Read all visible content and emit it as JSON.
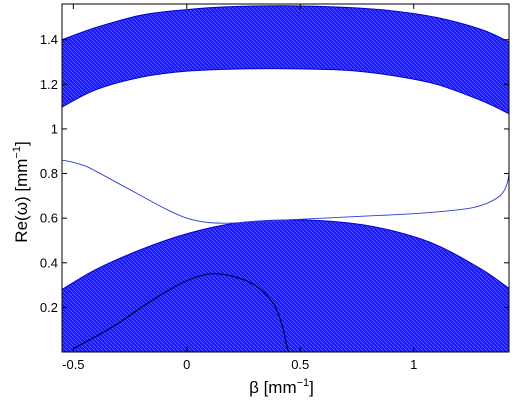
{
  "chart_data": {
    "type": "line",
    "title": "",
    "xlabel": {
      "main": "β [mm",
      "sup": "−1",
      "close": "]"
    },
    "ylabel": {
      "main": "Re(ω) [mm",
      "sup": "−1",
      "close": "]"
    },
    "xlim": [
      -0.55,
      1.42
    ],
    "ylim": [
      0.0,
      1.56
    ],
    "xticks": [
      {
        "value": -0.5,
        "label": "-0.5"
      },
      {
        "value": 0,
        "label": "0"
      },
      {
        "value": 0.5,
        "label": "0.5"
      },
      {
        "value": 1,
        "label": "1"
      }
    ],
    "yticks": [
      {
        "value": 0.2,
        "label": "0.2"
      },
      {
        "value": 0.4,
        "label": "0.4"
      },
      {
        "value": 0.6,
        "label": "0.6"
      },
      {
        "value": 0.8,
        "label": "0.8"
      },
      {
        "value": 1.0,
        "label": "1"
      },
      {
        "value": 1.2,
        "label": "1.2"
      },
      {
        "value": 1.4,
        "label": "1.4"
      }
    ],
    "grid": false,
    "legend": "none",
    "colors": {
      "band": "#1a1aff",
      "band_edge": "#0000cc",
      "curve": "#2b3dd6",
      "dark_curve": "#00003a"
    },
    "series": [
      {
        "kind": "band",
        "lower": [
          [
            -0.55,
            1.098
          ],
          [
            -0.4,
            1.176
          ],
          [
            -0.2,
            1.232
          ],
          [
            0,
            1.259
          ],
          [
            0.2,
            1.268
          ],
          [
            0.44,
            1.27
          ],
          [
            0.7,
            1.263
          ],
          [
            0.9,
            1.24
          ],
          [
            1.1,
            1.2
          ],
          [
            1.3,
            1.126
          ],
          [
            1.42,
            1.068
          ]
        ],
        "upper": [
          [
            -0.55,
            1.4
          ],
          [
            -0.4,
            1.455
          ],
          [
            -0.2,
            1.51
          ],
          [
            0,
            1.535
          ],
          [
            0.2,
            1.548
          ],
          [
            0.44,
            1.552
          ],
          [
            0.7,
            1.545
          ],
          [
            0.9,
            1.53
          ],
          [
            1.1,
            1.5
          ],
          [
            1.3,
            1.445
          ],
          [
            1.42,
            1.39
          ]
        ]
      },
      {
        "kind": "band",
        "lower": [
          [
            -0.55,
            0.0
          ],
          [
            1.42,
            0.0
          ]
        ],
        "upper": [
          [
            -0.55,
            0.28
          ],
          [
            -0.4,
            0.37
          ],
          [
            -0.2,
            0.46
          ],
          [
            0,
            0.53
          ],
          [
            0.2,
            0.575
          ],
          [
            0.44,
            0.592
          ],
          [
            0.7,
            0.58
          ],
          [
            0.9,
            0.545
          ],
          [
            1.1,
            0.48
          ],
          [
            1.3,
            0.37
          ],
          [
            1.42,
            0.285
          ]
        ]
      },
      {
        "kind": "curve",
        "points": [
          [
            -0.55,
            0.86
          ],
          [
            -0.5,
            0.85
          ],
          [
            -0.45,
            0.835
          ],
          [
            -0.4,
            0.81
          ],
          [
            -0.3,
            0.755
          ],
          [
            -0.2,
            0.7
          ],
          [
            -0.1,
            0.645
          ],
          [
            0,
            0.6
          ],
          [
            0.1,
            0.58
          ],
          [
            0.2,
            0.578
          ],
          [
            0.3,
            0.585
          ],
          [
            0.4,
            0.59
          ],
          [
            0.6,
            0.6
          ],
          [
            0.8,
            0.61
          ],
          [
            1.0,
            0.62
          ],
          [
            1.2,
            0.638
          ],
          [
            1.3,
            0.658
          ],
          [
            1.38,
            0.7
          ],
          [
            1.41,
            0.75
          ],
          [
            1.42,
            0.8
          ]
        ]
      },
      {
        "kind": "dark-curve",
        "points": [
          [
            -0.5,
            0.015
          ],
          [
            -0.4,
            0.07
          ],
          [
            -0.3,
            0.13
          ],
          [
            -0.2,
            0.2
          ],
          [
            -0.1,
            0.265
          ],
          [
            0,
            0.32
          ],
          [
            0.1,
            0.35
          ],
          [
            0.2,
            0.34
          ],
          [
            0.3,
            0.3
          ],
          [
            0.38,
            0.22
          ],
          [
            0.42,
            0.12
          ],
          [
            0.44,
            0.03
          ],
          [
            0.45,
            0.0
          ]
        ]
      }
    ]
  }
}
